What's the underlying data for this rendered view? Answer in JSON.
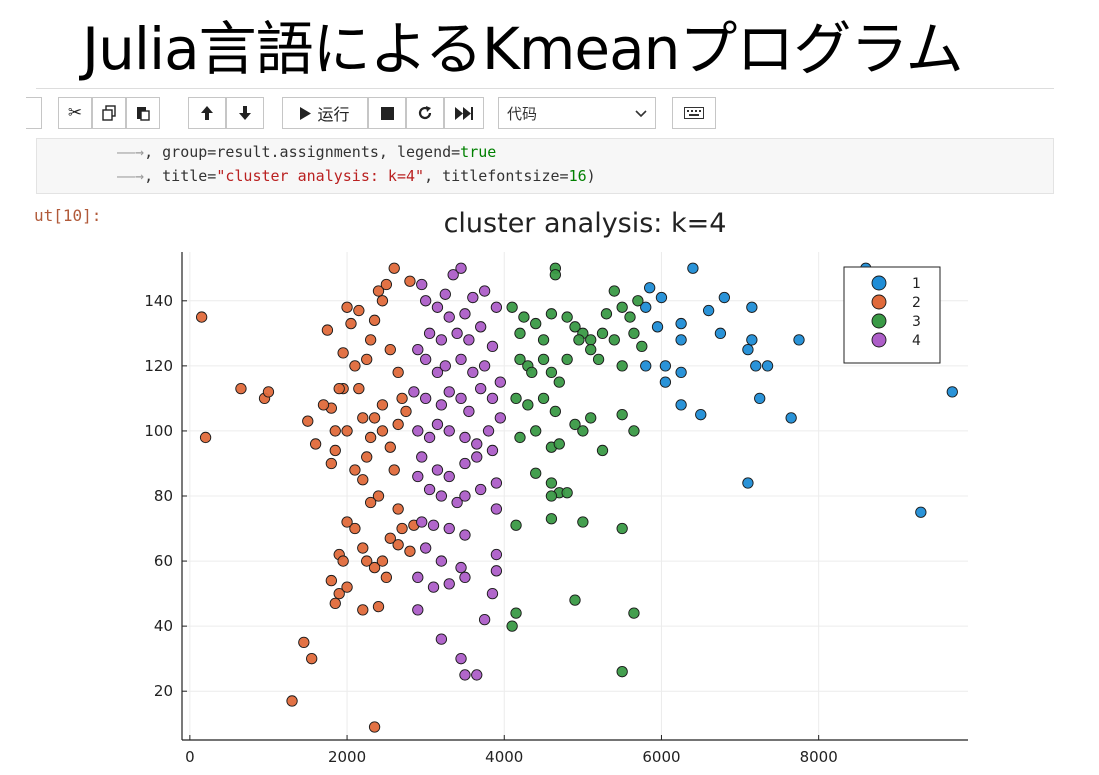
{
  "slide": {
    "title": "Julia言語によるKmeanプログラム"
  },
  "toolbar": {
    "run_label": "运行",
    "cell_type": "代码"
  },
  "code": {
    "line1": {
      "prefix": ", group=result.assignments, legend=",
      "value": "true"
    },
    "line2": {
      "prefix": ", title=",
      "string": "\"cluster analysis: k=4\"",
      "mid": ", titlefontsize=",
      "value": "16",
      "suffix": ")"
    }
  },
  "output_prompt": "ut[10]:",
  "colors": {
    "cluster_1": "#1f8dd6",
    "cluster_2": "#e06a3b",
    "cluster_3": "#3a9a46",
    "cluster_4": "#ad5ec8"
  },
  "chart_data": {
    "type": "scatter",
    "title": "cluster analysis: k=4",
    "xlabel": "",
    "ylabel": "",
    "xlim": [
      -100,
      9900
    ],
    "ylim": [
      5,
      155
    ],
    "xticks": [
      0,
      2000,
      4000,
      6000,
      8000
    ],
    "yticks": [
      20,
      40,
      60,
      80,
      100,
      120,
      140
    ],
    "grid": true,
    "legend": "top-right",
    "series": [
      {
        "name": "1",
        "color": "#1f8dd6",
        "points": [
          [
            5850,
            144
          ],
          [
            5800,
            138
          ],
          [
            6000,
            141
          ],
          [
            5950,
            132
          ],
          [
            6250,
            133
          ],
          [
            6250,
            128
          ],
          [
            6400,
            150
          ],
          [
            6600,
            137
          ],
          [
            6800,
            141
          ],
          [
            6750,
            130
          ],
          [
            7100,
            125
          ],
          [
            7150,
            138
          ],
          [
            7150,
            128
          ],
          [
            7200,
            120
          ],
          [
            7350,
            120
          ],
          [
            7750,
            128
          ],
          [
            5800,
            120
          ],
          [
            6050,
            120
          ],
          [
            6050,
            115
          ],
          [
            6250,
            118
          ],
          [
            6250,
            108
          ],
          [
            6500,
            105
          ],
          [
            7250,
            110
          ],
          [
            7650,
            104
          ],
          [
            7100,
            84
          ],
          [
            8600,
            150
          ],
          [
            9300,
            75
          ],
          [
            9700,
            112
          ]
        ]
      },
      {
        "name": "2",
        "color": "#e06a3b",
        "points": [
          [
            150,
            135
          ],
          [
            200,
            98
          ],
          [
            650,
            113
          ],
          [
            950,
            110
          ],
          [
            1000,
            112
          ],
          [
            1500,
            103
          ],
          [
            1600,
            96
          ],
          [
            1750,
            131
          ],
          [
            1800,
            107
          ],
          [
            1850,
            100
          ],
          [
            1850,
            94
          ],
          [
            1950,
            124
          ],
          [
            1950,
            113
          ],
          [
            2000,
            138
          ],
          [
            2050,
            133
          ],
          [
            2150,
            137
          ],
          [
            2100,
            120
          ],
          [
            2150,
            113
          ],
          [
            2250,
            122
          ],
          [
            2300,
            128
          ],
          [
            2350,
            134
          ],
          [
            2400,
            143
          ],
          [
            2450,
            140
          ],
          [
            2500,
            145
          ],
          [
            2600,
            150
          ],
          [
            2550,
            125
          ],
          [
            2650,
            118
          ],
          [
            2800,
            146
          ],
          [
            2200,
            104
          ],
          [
            2350,
            104
          ],
          [
            2300,
            98
          ],
          [
            2250,
            92
          ],
          [
            2450,
            100
          ],
          [
            2550,
            95
          ],
          [
            2650,
            102
          ],
          [
            2700,
            110
          ],
          [
            2600,
            88
          ],
          [
            1900,
            113
          ],
          [
            2000,
            100
          ],
          [
            2100,
            88
          ],
          [
            2200,
            85
          ],
          [
            2400,
            80
          ],
          [
            2650,
            76
          ],
          [
            2700,
            70
          ],
          [
            2650,
            65
          ],
          [
            2300,
            78
          ],
          [
            2100,
            70
          ],
          [
            2000,
            72
          ],
          [
            1900,
            62
          ],
          [
            1950,
            60
          ],
          [
            1800,
            54
          ],
          [
            1900,
            50
          ],
          [
            2000,
            52
          ],
          [
            1850,
            47
          ],
          [
            2200,
            45
          ],
          [
            2400,
            46
          ],
          [
            2250,
            60
          ],
          [
            2350,
            58
          ],
          [
            2450,
            60
          ],
          [
            2500,
            55
          ],
          [
            2550,
            67
          ],
          [
            2200,
            64
          ],
          [
            1450,
            35
          ],
          [
            1550,
            30
          ],
          [
            1300,
            17
          ],
          [
            2350,
            9
          ],
          [
            2800,
            63
          ],
          [
            2850,
            71
          ],
          [
            1800,
            90
          ],
          [
            1700,
            108
          ],
          [
            2750,
            106
          ],
          [
            2450,
            108
          ]
        ]
      },
      {
        "name": "3",
        "color": "#3a9a46",
        "points": [
          [
            4100,
            138
          ],
          [
            4250,
            135
          ],
          [
            4200,
            130
          ],
          [
            4400,
            133
          ],
          [
            4500,
            128
          ],
          [
            4600,
            136
          ],
          [
            4650,
            150
          ],
          [
            4650,
            148
          ],
          [
            4800,
            135
          ],
          [
            4900,
            132
          ],
          [
            5000,
            130
          ],
          [
            5100,
            128
          ],
          [
            5250,
            130
          ],
          [
            5300,
            136
          ],
          [
            5400,
            143
          ],
          [
            5500,
            138
          ],
          [
            5600,
            135
          ],
          [
            5700,
            140
          ],
          [
            5750,
            126
          ],
          [
            5650,
            130
          ],
          [
            4200,
            122
          ],
          [
            4300,
            120
          ],
          [
            4350,
            118
          ],
          [
            4500,
            122
          ],
          [
            4600,
            118
          ],
          [
            4700,
            115
          ],
          [
            4800,
            122
          ],
          [
            4950,
            128
          ],
          [
            5100,
            125
          ],
          [
            5200,
            122
          ],
          [
            5400,
            128
          ],
          [
            5500,
            120
          ],
          [
            4150,
            110
          ],
          [
            4300,
            108
          ],
          [
            4500,
            110
          ],
          [
            4650,
            106
          ],
          [
            4900,
            102
          ],
          [
            5000,
            100
          ],
          [
            5100,
            104
          ],
          [
            5500,
            105
          ],
          [
            5650,
            100
          ],
          [
            4200,
            98
          ],
          [
            4400,
            100
          ],
          [
            4600,
            95
          ],
          [
            4700,
            96
          ],
          [
            5250,
            94
          ],
          [
            4400,
            87
          ],
          [
            4600,
            84
          ],
          [
            4700,
            81
          ],
          [
            4600,
            80
          ],
          [
            4800,
            81
          ],
          [
            4150,
            71
          ],
          [
            4600,
            73
          ],
          [
            5000,
            72
          ],
          [
            5500,
            70
          ],
          [
            4900,
            48
          ],
          [
            4150,
            44
          ],
          [
            4100,
            40
          ],
          [
            5650,
            44
          ],
          [
            5500,
            26
          ]
        ]
      },
      {
        "name": "4",
        "color": "#ad5ec8",
        "points": [
          [
            2950,
            145
          ],
          [
            3000,
            140
          ],
          [
            3150,
            138
          ],
          [
            3250,
            142
          ],
          [
            3350,
            148
          ],
          [
            3450,
            150
          ],
          [
            3300,
            135
          ],
          [
            3500,
            136
          ],
          [
            3600,
            141
          ],
          [
            3750,
            143
          ],
          [
            3900,
            138
          ],
          [
            3050,
            130
          ],
          [
            3200,
            128
          ],
          [
            3400,
            130
          ],
          [
            3550,
            128
          ],
          [
            3700,
            132
          ],
          [
            3850,
            126
          ],
          [
            2900,
            125
          ],
          [
            3000,
            122
          ],
          [
            3150,
            118
          ],
          [
            3250,
            120
          ],
          [
            3450,
            122
          ],
          [
            3600,
            118
          ],
          [
            3750,
            120
          ],
          [
            3950,
            115
          ],
          [
            2850,
            112
          ],
          [
            3000,
            110
          ],
          [
            3200,
            108
          ],
          [
            3300,
            112
          ],
          [
            3450,
            110
          ],
          [
            3550,
            106
          ],
          [
            3700,
            113
          ],
          [
            3850,
            110
          ],
          [
            3950,
            104
          ],
          [
            2900,
            100
          ],
          [
            3050,
            98
          ],
          [
            3150,
            102
          ],
          [
            3300,
            100
          ],
          [
            3500,
            98
          ],
          [
            3650,
            96
          ],
          [
            3800,
            100
          ],
          [
            2950,
            92
          ],
          [
            3150,
            88
          ],
          [
            3300,
            86
          ],
          [
            3500,
            90
          ],
          [
            3650,
            92
          ],
          [
            3850,
            94
          ],
          [
            2900,
            86
          ],
          [
            3050,
            82
          ],
          [
            3200,
            80
          ],
          [
            3400,
            78
          ],
          [
            3500,
            80
          ],
          [
            3700,
            82
          ],
          [
            3900,
            84
          ],
          [
            2950,
            72
          ],
          [
            3100,
            71
          ],
          [
            3300,
            70
          ],
          [
            3500,
            68
          ],
          [
            3900,
            76
          ],
          [
            3000,
            64
          ],
          [
            3200,
            60
          ],
          [
            3450,
            58
          ],
          [
            3900,
            62
          ],
          [
            2900,
            55
          ],
          [
            3100,
            52
          ],
          [
            3300,
            53
          ],
          [
            3500,
            55
          ],
          [
            3900,
            57
          ],
          [
            2900,
            45
          ],
          [
            3200,
            36
          ],
          [
            3450,
            30
          ],
          [
            3500,
            25
          ],
          [
            3650,
            25
          ],
          [
            3750,
            42
          ],
          [
            3850,
            50
          ]
        ]
      }
    ]
  }
}
